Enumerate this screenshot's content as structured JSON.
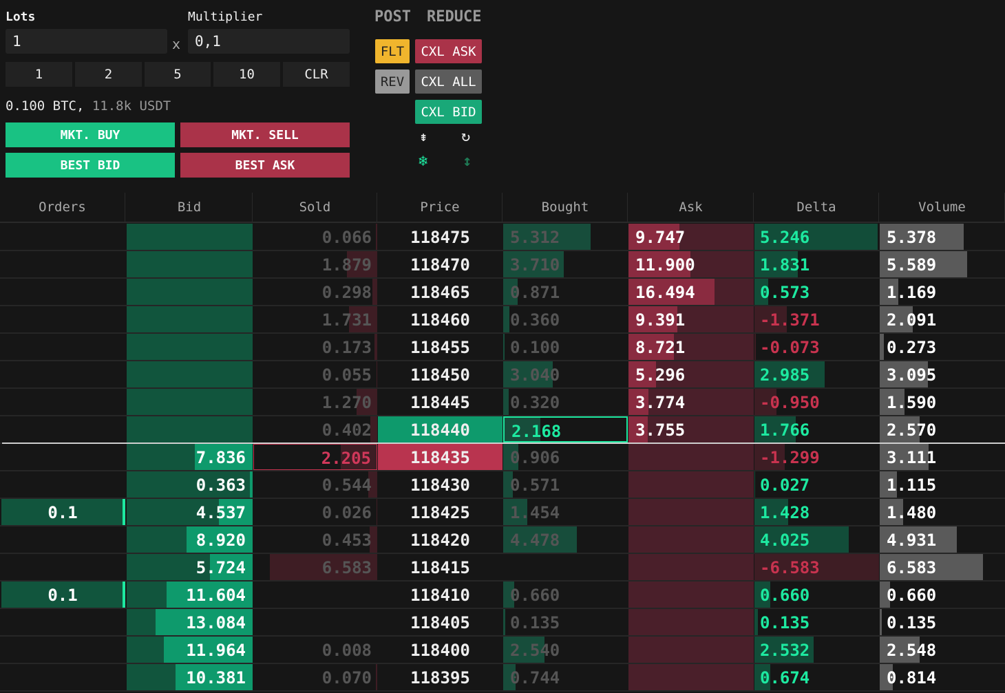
{
  "controls": {
    "lots_label": "Lots",
    "lots_value": "1",
    "x_label": "x",
    "multiplier_label": "Multiplier",
    "multiplier_value": "0,1",
    "quick": [
      "1",
      "2",
      "5",
      "10",
      "CLR"
    ],
    "size_btc": "0.100 BTC,",
    "size_usdt": "11.8k USDT",
    "mkt_buy": "MKT. BUY",
    "mkt_sell": "MKT. SELL",
    "best_bid": "BEST BID",
    "best_ask": "BEST ASK",
    "post": "POST",
    "reduce": "REDUCE",
    "flt": "FLT",
    "rev": "REV",
    "cxl_ask": "CXL ASK",
    "cxl_all": "CXL ALL",
    "cxl_bid": "CXL BID",
    "icons": [
      "compress-icon",
      "refresh-icon",
      "snowflake-icon",
      "vertical-arrows-icon"
    ]
  },
  "colors": {
    "green": "#19c283",
    "red": "#aa3349",
    "flt": "#f0b52d",
    "rev": "#999999",
    "cxl_all": "#5c5c5c"
  },
  "columns": [
    "Orders",
    "Bid",
    "Sold",
    "Price",
    "Bought",
    "Ask",
    "Delta",
    "Volume"
  ],
  "rows": [
    {
      "orders": "",
      "bid": "",
      "sold": "0.066",
      "price": "118475",
      "bought": "5.312",
      "ask": "9.747",
      "delta": "5.246",
      "volume": "5.378"
    },
    {
      "orders": "",
      "bid": "",
      "sold": "1.879",
      "price": "118470",
      "bought": "3.710",
      "ask": "11.900",
      "delta": "1.831",
      "volume": "5.589"
    },
    {
      "orders": "",
      "bid": "",
      "sold": "0.298",
      "price": "118465",
      "bought": "0.871",
      "ask": "16.494",
      "delta": "0.573",
      "volume": "1.169"
    },
    {
      "orders": "",
      "bid": "",
      "sold": "1.731",
      "price": "118460",
      "bought": "0.360",
      "ask": "9.391",
      "delta": "-1.371",
      "volume": "2.091"
    },
    {
      "orders": "",
      "bid": "",
      "sold": "0.173",
      "price": "118455",
      "bought": "0.100",
      "ask": "8.721",
      "delta": "-0.073",
      "volume": "0.273"
    },
    {
      "orders": "",
      "bid": "",
      "sold": "0.055",
      "price": "118450",
      "bought": "3.040",
      "ask": "5.296",
      "delta": "2.985",
      "volume": "3.095"
    },
    {
      "orders": "",
      "bid": "",
      "sold": "1.270",
      "price": "118445",
      "bought": "0.320",
      "ask": "3.774",
      "delta": "-0.950",
      "volume": "1.590"
    },
    {
      "orders": "",
      "bid": "",
      "sold": "0.402",
      "price": "118440",
      "bought": "2.168",
      "ask": "3.755",
      "delta": "1.766",
      "volume": "2.570",
      "state": "best-ask"
    },
    {
      "orders": "",
      "bid": "7.836",
      "sold": "2.205",
      "price": "118435",
      "bought": "0.906",
      "ask": "",
      "delta": "-1.299",
      "volume": "3.111",
      "state": "best-bid"
    },
    {
      "orders": "",
      "bid": "0.363",
      "sold": "0.544",
      "price": "118430",
      "bought": "0.571",
      "ask": "",
      "delta": "0.027",
      "volume": "1.115"
    },
    {
      "orders": "0.1",
      "bid": "4.537",
      "sold": "0.026",
      "price": "118425",
      "bought": "1.454",
      "ask": "",
      "delta": "1.428",
      "volume": "1.480"
    },
    {
      "orders": "",
      "bid": "8.920",
      "sold": "0.453",
      "price": "118420",
      "bought": "4.478",
      "ask": "",
      "delta": "4.025",
      "volume": "4.931"
    },
    {
      "orders": "",
      "bid": "5.724",
      "sold": "6.583",
      "price": "118415",
      "bought": "",
      "ask": "",
      "delta": "-6.583",
      "volume": "6.583"
    },
    {
      "orders": "0.1",
      "bid": "11.604",
      "sold": "",
      "price": "118410",
      "bought": "0.660",
      "ask": "",
      "delta": "0.660",
      "volume": "0.660"
    },
    {
      "orders": "",
      "bid": "13.084",
      "sold": "",
      "price": "118405",
      "bought": "0.135",
      "ask": "",
      "delta": "0.135",
      "volume": "0.135"
    },
    {
      "orders": "",
      "bid": "11.964",
      "sold": "0.008",
      "price": "118400",
      "bought": "2.540",
      "ask": "",
      "delta": "2.532",
      "volume": "2.548"
    },
    {
      "orders": "",
      "bid": "10.381",
      "sold": "0.070",
      "price": "118395",
      "bought": "0.744",
      "ask": "",
      "delta": "0.674",
      "volume": "0.814"
    }
  ]
}
